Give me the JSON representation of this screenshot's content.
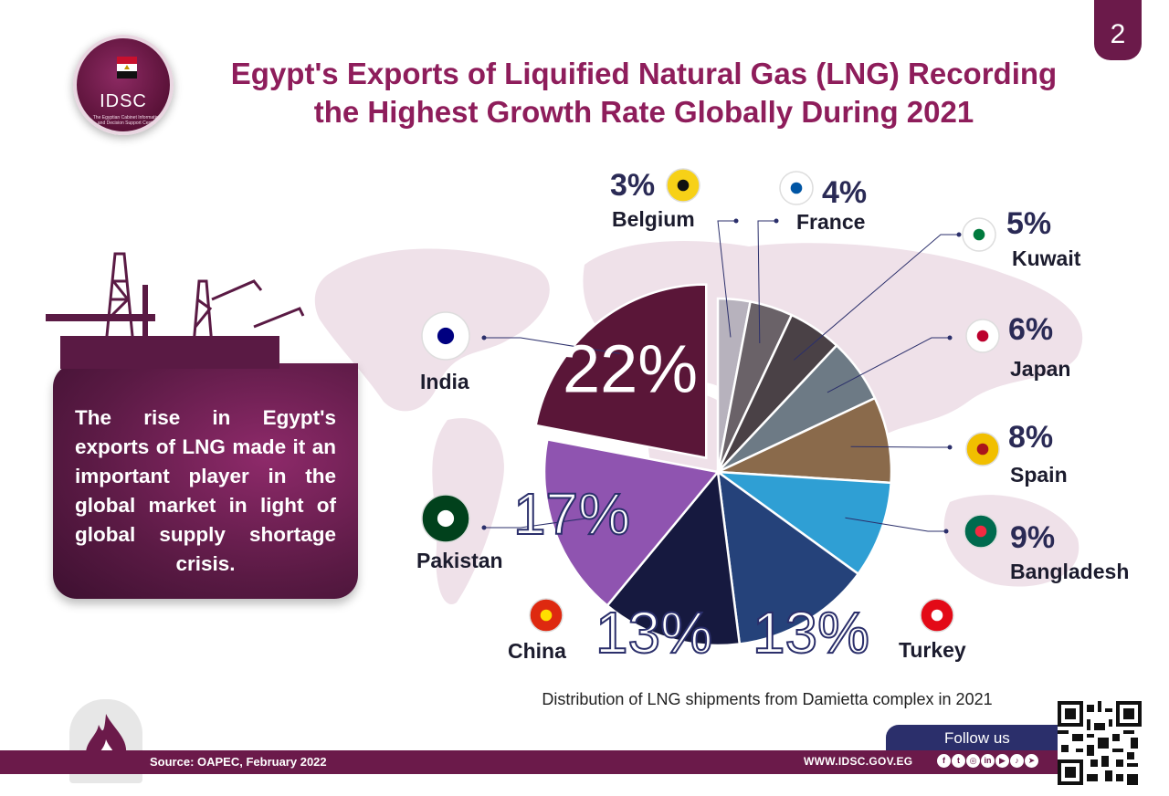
{
  "page_number": "2",
  "logo": {
    "name": "IDSC",
    "subtitle": "The Egyptian Cabinet Information and Decision Support Center"
  },
  "title_line1": "Egypt's Exports of Liquified Natural Gas (LNG) Recording",
  "title_line2": "the Highest Growth Rate Globally During 2021",
  "info_text": "The rise in Egypt's exports of LNG made it an important player in the global market in light of global supply shortage crisis.",
  "caption": "Distribution of LNG shipments from Damietta complex in 2021",
  "footer": {
    "source": "Source: OAPEC, February 2022",
    "website": "WWW.IDSC.GOV.EG",
    "follow_label": "Follow us",
    "social_icons": [
      "facebook-icon",
      "twitter-icon",
      "instagram-icon",
      "linkedin-icon",
      "youtube-icon",
      "tiktok-icon",
      "telegram-icon"
    ]
  },
  "colors": {
    "brand_purple": "#6b1a4a",
    "title": "#8e1d5b",
    "navy": "#2b2f6b"
  },
  "chart_data": {
    "type": "pie",
    "title": "Distribution of LNG shipments from Damietta complex in 2021",
    "series": [
      {
        "label": "Belgium",
        "value": 3,
        "display": "3%",
        "color": "#b7b2bd",
        "flag": "belgium-flag-icon"
      },
      {
        "label": "France",
        "value": 4,
        "display": "4%",
        "color": "#6a6268",
        "flag": "france-flag-icon"
      },
      {
        "label": "Kuwait",
        "value": 5,
        "display": "5%",
        "color": "#4a4146",
        "flag": "kuwait-flag-icon"
      },
      {
        "label": "Japan",
        "value": 6,
        "display": "6%",
        "color": "#6d7a85",
        "flag": "japan-flag-icon"
      },
      {
        "label": "Spain",
        "value": 8,
        "display": "8%",
        "color": "#8a6a4b",
        "flag": "spain-flag-icon"
      },
      {
        "label": "Bangladesh",
        "value": 9,
        "display": "9%",
        "color": "#2f9fd4",
        "flag": "bangladesh-flag-icon"
      },
      {
        "label": "Turkey",
        "value": 13,
        "display": "13%",
        "color": "#25427a",
        "flag": "turkey-flag-icon"
      },
      {
        "label": "China",
        "value": 13,
        "display": "13%",
        "color": "#16193f",
        "flag": "china-flag-icon"
      },
      {
        "label": "Pakistan",
        "value": 17,
        "display": "17%",
        "color": "#8f54b0",
        "flag": "pakistan-flag-icon"
      },
      {
        "label": "India",
        "value": 22,
        "display": "22%",
        "color": "#5a1638",
        "flag": "india-flag-icon"
      }
    ]
  }
}
